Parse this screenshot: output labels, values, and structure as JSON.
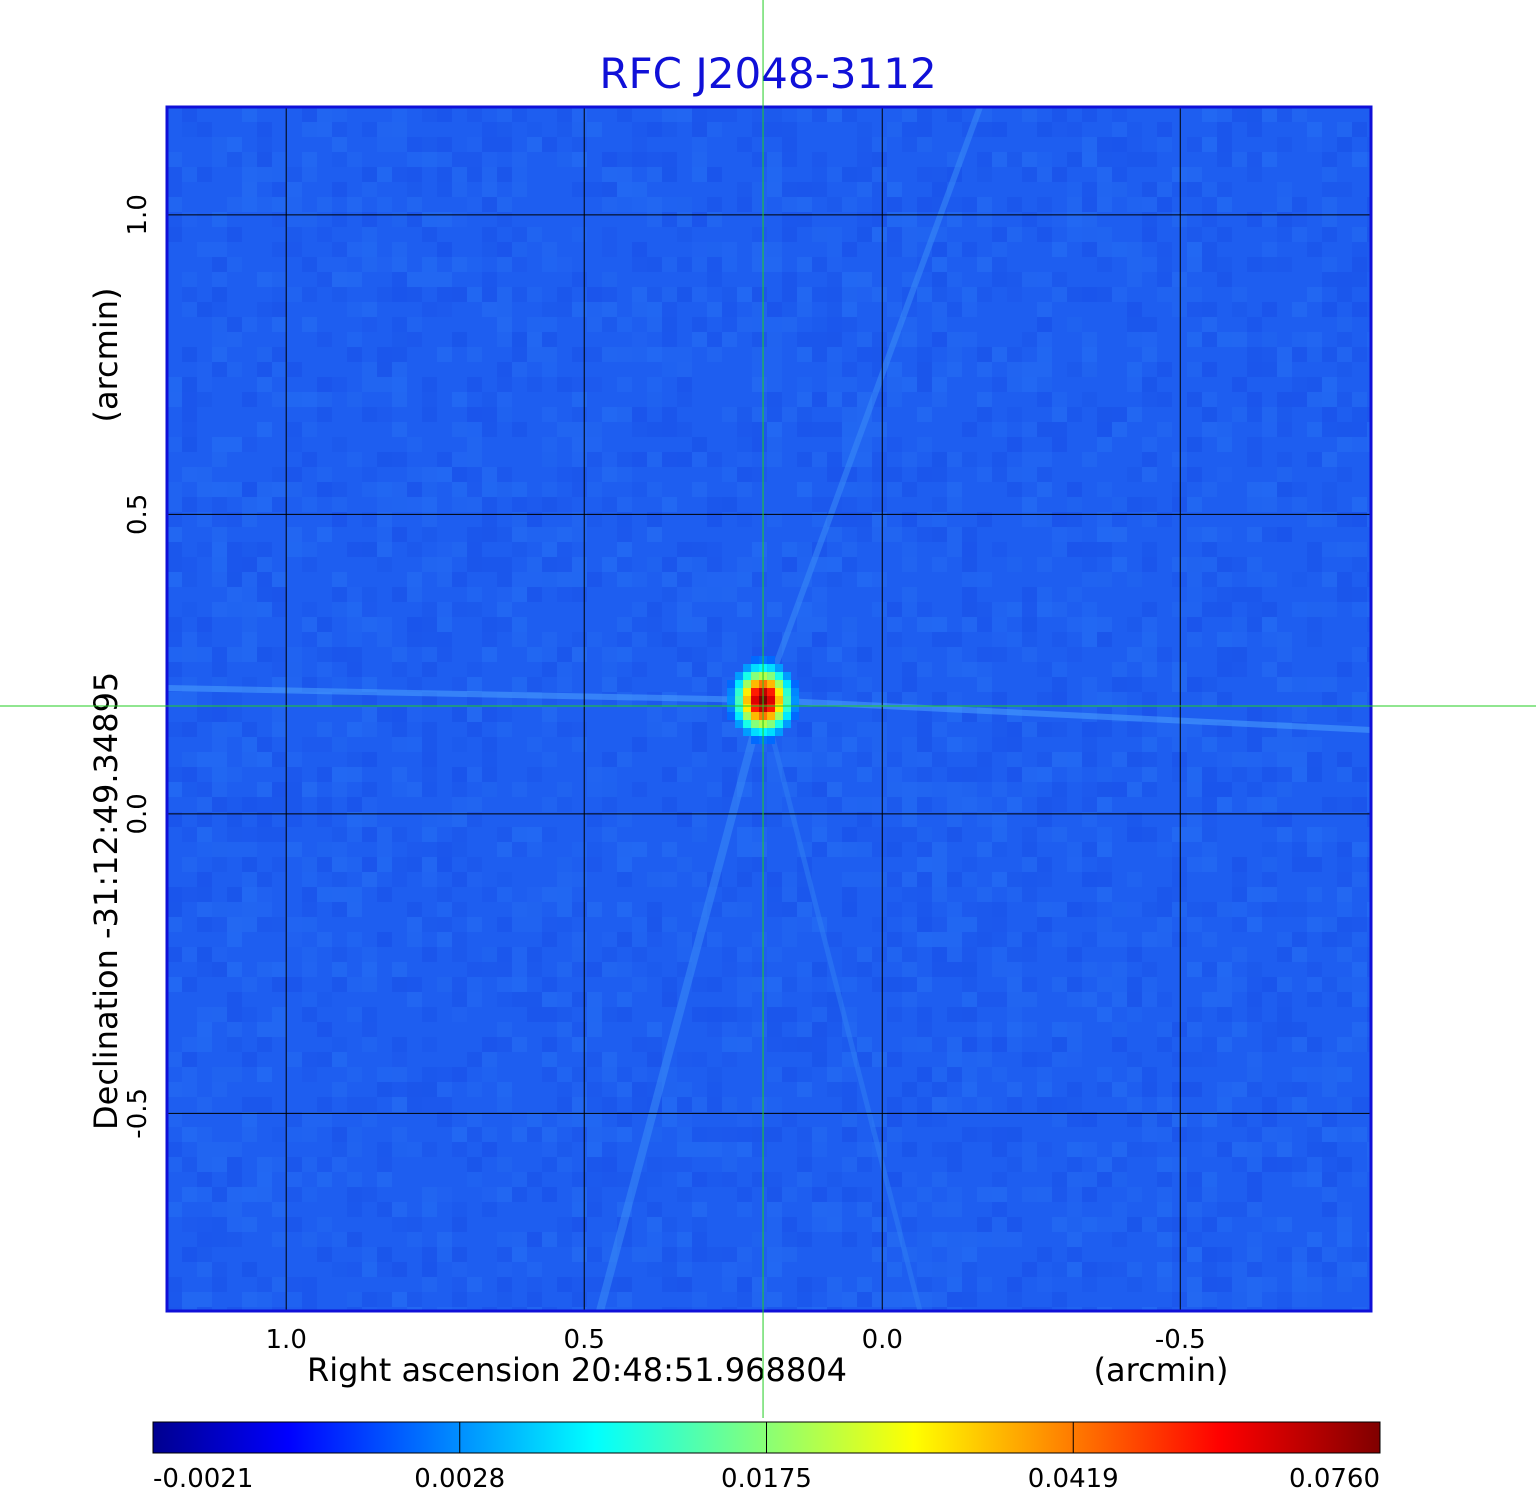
{
  "chart_data": {
    "type": "heatmap",
    "title": "RFC J2048-3112",
    "xlabel": "Right ascension  20:48:51.968804",
    "xunit": "(arcmin)",
    "ylabel": "Declination  -31:12:49.34895",
    "yunit": "(arcmin)",
    "xlim": [
      1.2,
      -0.82
    ],
    "ylim": [
      -0.83,
      1.18
    ],
    "x_ticks": [
      {
        "value": 1.0,
        "label": "1.0"
      },
      {
        "value": 0.5,
        "label": "0.5"
      },
      {
        "value": 0.0,
        "label": "0.0"
      },
      {
        "value": -0.5,
        "label": "-0.5"
      }
    ],
    "y_ticks": [
      {
        "value": 1.0,
        "label": "1.0"
      },
      {
        "value": 0.5,
        "label": "0.5"
      },
      {
        "value": 0.0,
        "label": "0.0"
      },
      {
        "value": -0.5,
        "label": "-0.5"
      }
    ],
    "grid": true,
    "colormap": "jet",
    "background_value": -0.0005,
    "peak": {
      "x": 0.2,
      "y": 0.19,
      "value": 0.076
    },
    "crosshair": {
      "x": 0.2,
      "y": 0.18,
      "color": "#22cc22"
    },
    "colorbar": {
      "orientation": "horizontal",
      "ticks": [
        {
          "value": -0.0021,
          "label": "-0.0021"
        },
        {
          "value": 0.0028,
          "label": "0.0028"
        },
        {
          "value": 0.0175,
          "label": "0.0175"
        },
        {
          "value": 0.0419,
          "label": "0.0419"
        },
        {
          "value": 0.076,
          "label": "0.0760"
        }
      ]
    }
  }
}
